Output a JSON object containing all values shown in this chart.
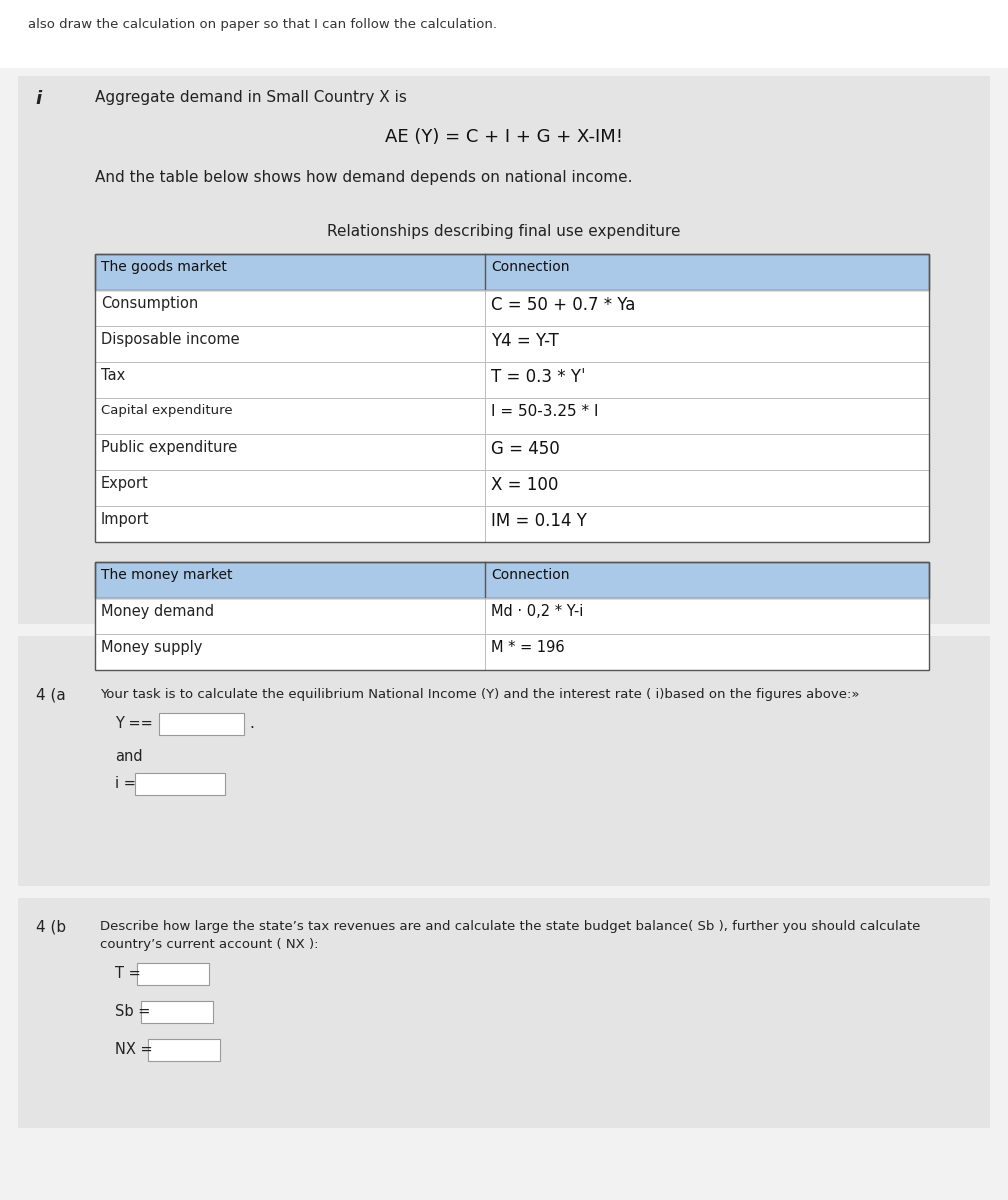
{
  "top_note": "also draw the calculation on paper so that I can follow the calculation.",
  "bg_color_outer": "#f2f2f2",
  "bg_color_section1": "#e4e4e4",
  "bg_color_section2": "#e4e4e4",
  "bg_color_white": "#ffffff",
  "section1_label": "i",
  "section1_title": "Aggregate demand in Small Country X is",
  "section1_formula": "AE (Y) = C + I + G + X-IM!",
  "section1_subtitle": "And the table below shows how demand depends on national income.",
  "table1_title": "Relationships describing final use expenditure",
  "table1_header_left": "The goods market",
  "table1_header_right": "Connection",
  "table1_header_bg": "#aac8e8",
  "table1_rows": [
    [
      "Consumption",
      "C = 50 + 0.7 * Ya"
    ],
    [
      "Disposable income",
      "Y4 = Y-T"
    ],
    [
      "Tax",
      "T = 0.3 * Yˈ"
    ],
    [
      "Capital expenditure",
      "I = 50-3.25 * I"
    ],
    [
      "Public expenditure",
      "G = 450"
    ],
    [
      "Export",
      "X = 100"
    ],
    [
      "Import",
      "IM = 0.14 Y"
    ]
  ],
  "table2_header_left": "The money market",
  "table2_header_right": "Connection",
  "table2_header_bg": "#aac8e8",
  "table2_rows": [
    [
      "Money demand",
      "Md · 0,2 * Y-i"
    ],
    [
      "Money supply",
      "M * = 196"
    ]
  ],
  "section2_label": "4 (a",
  "section2_text": "Your task is to calculate the equilibrium National Income (Y) and the interest rate ( i)based on the figures above:»",
  "section2_y_label": "Y ==",
  "section2_and": "and",
  "section2_i_label": "i =",
  "section3_label": "4 (b",
  "section3_text1": "Describe how large the state’s tax revenues are and calculate the state budget balance( Sb ), further you should calculate",
  "section3_text2": "country’s current account ( NX ):",
  "section3_t_label": "T =",
  "section3_sb_label": "Sb =",
  "section3_nx_label": "NX ="
}
